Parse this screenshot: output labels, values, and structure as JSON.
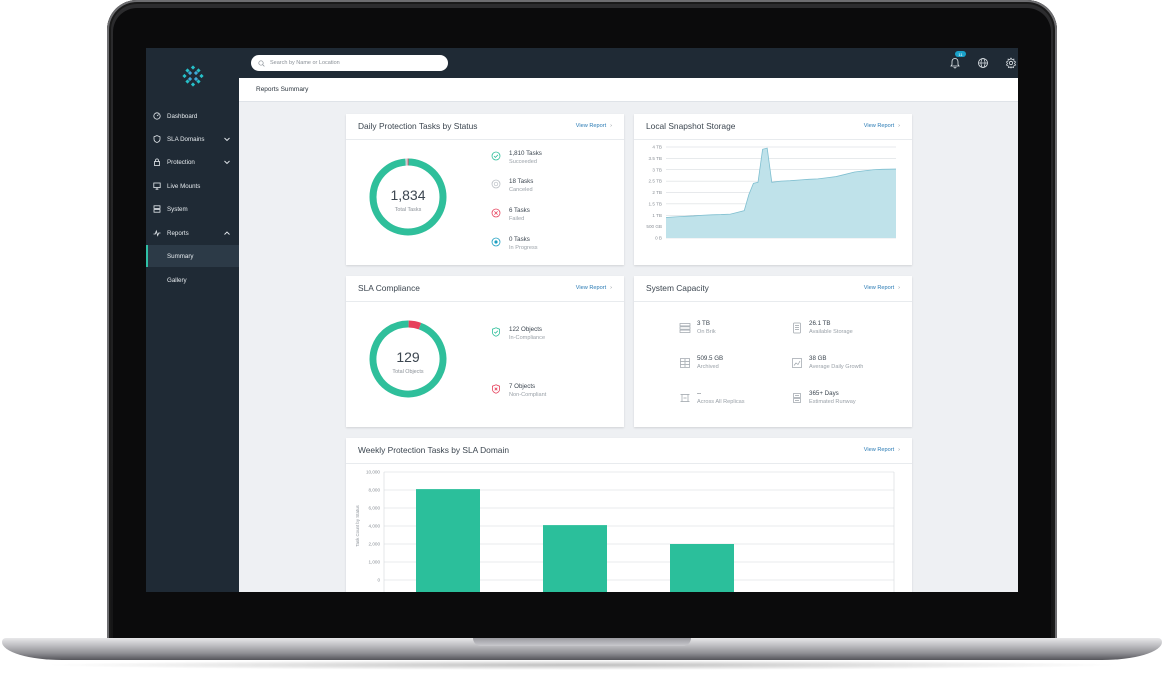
{
  "search": {
    "placeholder": "Search by Name or Location"
  },
  "notifications": {
    "count": "11"
  },
  "page_title": "Reports Summary",
  "sidebar": {
    "items": [
      {
        "label": "Dashboard",
        "icon": "dashboard-icon"
      },
      {
        "label": "SLA Domains",
        "icon": "shield-icon"
      },
      {
        "label": "Protection",
        "icon": "lock-icon"
      },
      {
        "label": "Live Mounts",
        "icon": "monitor-icon"
      },
      {
        "label": "System",
        "icon": "server-icon"
      },
      {
        "label": "Reports",
        "icon": "pulse-icon"
      }
    ],
    "sub_items": [
      {
        "label": "Summary",
        "active": true
      },
      {
        "label": "Gallery",
        "active": false
      }
    ]
  },
  "daily_tasks": {
    "title": "Daily Protection Tasks by Status",
    "view_report": "View Report",
    "total": "1,834",
    "total_label": "Total Tasks",
    "legend": [
      {
        "value": "1,810 Tasks",
        "status": "Succeeded",
        "icon": "check-circle-icon",
        "color": "#2fbf9b"
      },
      {
        "value": "18 Tasks",
        "status": "Canceled",
        "icon": "canceled-circle-icon",
        "color": "#b9bec4"
      },
      {
        "value": "6 Tasks",
        "status": "Failed",
        "icon": "x-circle-icon",
        "color": "#e6415c"
      },
      {
        "value": "0 Tasks",
        "status": "In Progress",
        "icon": "progress-circle-icon",
        "color": "#1d9fc1"
      }
    ]
  },
  "snapshot_storage": {
    "title": "Local Snapshot Storage",
    "view_report": "View Report"
  },
  "sla_compliance": {
    "title": "SLA Compliance",
    "view_report": "View Report",
    "total": "129",
    "total_label": "Total Objects",
    "legend": [
      {
        "value": "122 Objects",
        "status": "In-Compliance",
        "icon": "shield-check-icon",
        "color": "#2fbf9b"
      },
      {
        "value": "7 Objects",
        "status": "Non-Compliant",
        "icon": "shield-x-icon",
        "color": "#e6415c"
      }
    ]
  },
  "system_capacity": {
    "title": "System Capacity",
    "view_report": "View Report",
    "items": [
      {
        "value": "3 TB",
        "label": "On Brik",
        "icon": "server-stack-icon"
      },
      {
        "value": "26.1 TB",
        "label": "Available Storage",
        "icon": "database-icon"
      },
      {
        "value": "509.5 GB",
        "label": "Archived",
        "icon": "archive-icon"
      },
      {
        "value": "38 GB",
        "label": "Average Daily Growth",
        "icon": "growth-icon"
      },
      {
        "value": "--",
        "label": "Across All Replicas",
        "icon": "replica-icon"
      },
      {
        "value": "365+ Days",
        "label": "Estimated Runway",
        "icon": "runway-icon"
      }
    ]
  },
  "weekly_tasks": {
    "title": "Weekly Protection Tasks by SLA Domain",
    "view_report": "View Report"
  },
  "chart_data": [
    {
      "type": "pie",
      "title": "Daily Protection Tasks by Status",
      "categories": [
        "Succeeded",
        "Canceled",
        "Failed",
        "In Progress"
      ],
      "values": [
        1810,
        18,
        6,
        0
      ],
      "colors": [
        "#2fbf9b",
        "#c9ced3",
        "#e6415c",
        "#1d9fc1"
      ]
    },
    {
      "type": "area",
      "title": "Local Snapshot Storage",
      "ylim": [
        0,
        4
      ],
      "yticks": [
        "0 B",
        "500 GB",
        "1 TB",
        "1.5 TB",
        "2 TB",
        "2.5 TB",
        "3 TB",
        "3.5 TB",
        "4 TB"
      ],
      "x": [
        0,
        4,
        8,
        12,
        16,
        20,
        24,
        28,
        30,
        34,
        36,
        38,
        40,
        42,
        44,
        46,
        50,
        54,
        58,
        62,
        66,
        70,
        74,
        78,
        82,
        86,
        90,
        94,
        100
      ],
      "values": [
        0.9,
        0.93,
        0.95,
        0.97,
        1.0,
        1.02,
        1.03,
        1.05,
        1.1,
        1.2,
        1.9,
        2.4,
        2.45,
        3.9,
        3.95,
        2.45,
        2.5,
        2.52,
        2.55,
        2.58,
        2.6,
        2.65,
        2.7,
        2.8,
        2.9,
        2.95,
        3.0,
        3.02,
        3.03
      ],
      "color": "#bfe2ea",
      "stroke": "#7fbfd0",
      "grid": true
    },
    {
      "type": "pie",
      "title": "SLA Compliance",
      "categories": [
        "In-Compliance",
        "Non-Compliant"
      ],
      "values": [
        122,
        7
      ],
      "colors": [
        "#2fbf9b",
        "#e6415c"
      ]
    },
    {
      "type": "bar",
      "title": "Weekly Protection Tasks by SLA Domain",
      "ylabel": "Task Count by Status",
      "ylim": [
        0,
        10000
      ],
      "yticks": [
        "0",
        "1,000",
        "2,000",
        "4,000",
        "6,000",
        "8,000",
        "10,000"
      ],
      "values": [
        8100,
        4100,
        2000
      ],
      "color": "#2bbf9b",
      "grid": true
    }
  ]
}
